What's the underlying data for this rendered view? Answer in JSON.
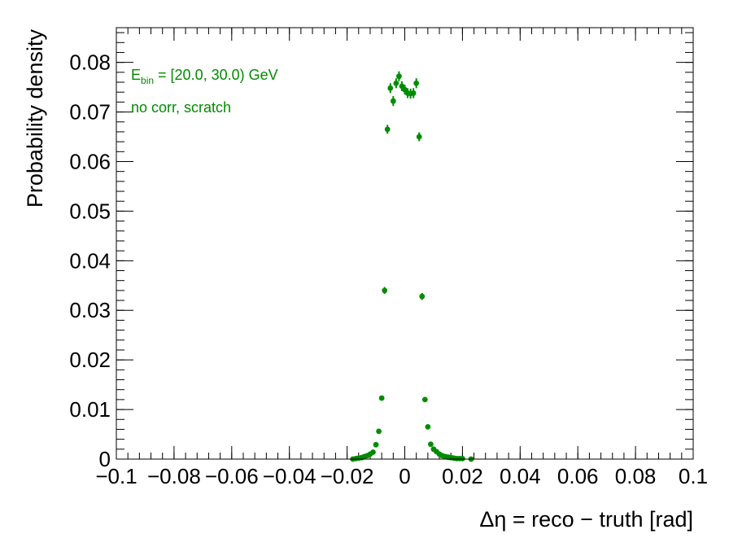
{
  "chart_data": {
    "type": "scatter",
    "xlabel": "Δη = reco − truth  [rad]",
    "ylabel": "Probability density",
    "xlim": [
      -0.1,
      0.1
    ],
    "ylim": [
      0,
      0.087
    ],
    "x_tick_labels": [
      "−0.1",
      "−0.08",
      "−0.06",
      "−0.04",
      "−0.02",
      "0",
      "0.02",
      "0.04",
      "0.06",
      "0.08",
      "0.1"
    ],
    "y_tick_labels": [
      "0",
      "0.01",
      "0.02",
      "0.03",
      "0.04",
      "0.05",
      "0.06",
      "0.07",
      "0.08"
    ],
    "annotations": {
      "energy_bin_E": "E",
      "energy_bin_sub": "bin",
      "energy_bin_rest": " = [20.0, 30.0) GeV",
      "correction": "no corr, scratch"
    },
    "marker_color": "#008c00",
    "grid": false,
    "series": [
      {
        "points": [
          {
            "x": -0.018,
            "y": 0.0,
            "err": 0
          },
          {
            "x": -0.017,
            "y": 0.0001,
            "err": 0
          },
          {
            "x": -0.016,
            "y": 0.0002,
            "err": 0
          },
          {
            "x": -0.015,
            "y": 0.0003,
            "err": 0
          },
          {
            "x": -0.014,
            "y": 0.0005,
            "err": 0
          },
          {
            "x": -0.013,
            "y": 0.0007,
            "err": 0
          },
          {
            "x": -0.012,
            "y": 0.001,
            "err": 0
          },
          {
            "x": -0.011,
            "y": 0.0014,
            "err": 0
          },
          {
            "x": -0.01,
            "y": 0.0029,
            "err": 0.0002
          },
          {
            "x": -0.009,
            "y": 0.0056,
            "err": 0.0003
          },
          {
            "x": -0.008,
            "y": 0.0123,
            "err": 0.0004
          },
          {
            "x": -0.007,
            "y": 0.034,
            "err": 0.0007
          },
          {
            "x": -0.006,
            "y": 0.0665,
            "err": 0.0009
          },
          {
            "x": -0.005,
            "y": 0.0748,
            "err": 0.001
          },
          {
            "x": -0.004,
            "y": 0.0722,
            "err": 0.001
          },
          {
            "x": -0.003,
            "y": 0.0758,
            "err": 0.001
          },
          {
            "x": -0.002,
            "y": 0.0772,
            "err": 0.001
          },
          {
            "x": -0.001,
            "y": 0.0752,
            "err": 0.001
          },
          {
            "x": 0.0,
            "y": 0.0745,
            "err": 0.001
          },
          {
            "x": 0.001,
            "y": 0.0738,
            "err": 0.001
          },
          {
            "x": 0.002,
            "y": 0.0737,
            "err": 0.001
          },
          {
            "x": 0.003,
            "y": 0.0738,
            "err": 0.001
          },
          {
            "x": 0.004,
            "y": 0.0758,
            "err": 0.001
          },
          {
            "x": 0.005,
            "y": 0.065,
            "err": 0.0009
          },
          {
            "x": 0.006,
            "y": 0.0328,
            "err": 0.0007
          },
          {
            "x": 0.007,
            "y": 0.012,
            "err": 0.0004
          },
          {
            "x": 0.008,
            "y": 0.0065,
            "err": 0.0003
          },
          {
            "x": 0.009,
            "y": 0.003,
            "err": 0.0002
          },
          {
            "x": 0.01,
            "y": 0.002,
            "err": 0
          },
          {
            "x": 0.011,
            "y": 0.0015,
            "err": 0
          },
          {
            "x": 0.012,
            "y": 0.001,
            "err": 0
          },
          {
            "x": 0.013,
            "y": 0.0007,
            "err": 0
          },
          {
            "x": 0.014,
            "y": 0.0005,
            "err": 0
          },
          {
            "x": 0.015,
            "y": 0.0004,
            "err": 0
          },
          {
            "x": 0.016,
            "y": 0.0003,
            "err": 0
          },
          {
            "x": 0.017,
            "y": 0.0002,
            "err": 0
          },
          {
            "x": 0.018,
            "y": 0.0001,
            "err": 0
          },
          {
            "x": 0.019,
            "y": 0.0001,
            "err": 0
          },
          {
            "x": 0.02,
            "y": 0.0001,
            "err": 0
          },
          {
            "x": 0.023,
            "y": 0.0,
            "err": 0
          }
        ]
      }
    ]
  }
}
